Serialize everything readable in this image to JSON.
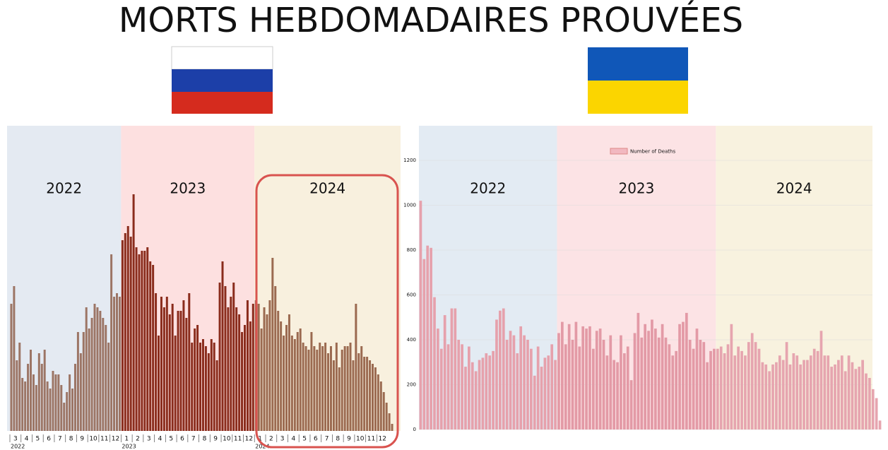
{
  "title": "MORTS HEBDOMADAIRES PROUVÉES",
  "chart_data": [
    {
      "type": "bar",
      "ylim": [
        0,
        400
      ],
      "periods": [
        {
          "label": "2022",
          "color": "#e4eaf2",
          "bar_color": "#9c7565",
          "categories": [
            "3",
            null,
            null,
            null,
            "4",
            null,
            null,
            null,
            "5",
            null,
            null,
            null,
            "6",
            null,
            null,
            null,
            "7",
            null,
            null,
            null,
            "8",
            null,
            null,
            null,
            "9",
            null,
            null,
            null,
            "10",
            null,
            null,
            null,
            "11",
            null,
            null,
            null,
            "12",
            null,
            null,
            null
          ],
          "values": [
            180,
            205,
            100,
            125,
            75,
            70,
            95,
            115,
            80,
            65,
            110,
            95,
            115,
            70,
            60,
            85,
            80,
            80,
            65,
            40,
            55,
            80,
            60,
            95,
            140,
            110,
            140,
            175,
            145,
            160,
            180,
            175,
            170,
            160,
            150,
            125,
            250,
            190,
            195,
            190
          ]
        },
        {
          "label": "2023",
          "color": "#fde0e0",
          "bar_color": "#8a2c1c",
          "categories": [
            "1",
            null,
            null,
            null,
            "2",
            null,
            null,
            null,
            "3",
            null,
            null,
            null,
            "4",
            null,
            null,
            null,
            "5",
            null,
            null,
            null,
            "6",
            null,
            null,
            null,
            "7",
            null,
            null,
            null,
            "8",
            null,
            null,
            null,
            "9",
            null,
            null,
            null,
            "10",
            null,
            null,
            null,
            "11",
            null,
            null,
            null,
            "12",
            null,
            null,
            null
          ],
          "values": [
            270,
            280,
            290,
            275,
            335,
            260,
            250,
            255,
            255,
            260,
            240,
            235,
            195,
            135,
            190,
            175,
            190,
            165,
            180,
            135,
            170,
            170,
            185,
            160,
            195,
            125,
            145,
            150,
            125,
            130,
            120,
            110,
            130,
            125,
            100,
            210,
            240,
            205,
            175,
            190,
            210,
            175,
            165,
            140,
            150,
            185,
            155,
            180
          ]
        },
        {
          "label": "2024",
          "color": "#f8f0de",
          "bar_color": "#9b6a50",
          "categories": [
            "1",
            null,
            null,
            null,
            "2",
            null,
            null,
            null,
            "3",
            null,
            null,
            null,
            "4",
            null,
            null,
            null,
            "5",
            null,
            null,
            null,
            "6",
            null,
            null,
            null,
            "7",
            null,
            null,
            null,
            "8",
            null,
            null,
            null,
            "9",
            null,
            null,
            null,
            "10",
            null,
            null,
            null,
            "11",
            null,
            null,
            null,
            "12",
            null,
            null,
            null,
            null,
            null
          ],
          "values": [
            185,
            180,
            145,
            175,
            165,
            185,
            245,
            205,
            170,
            155,
            135,
            150,
            165,
            135,
            130,
            140,
            145,
            125,
            120,
            115,
            140,
            120,
            115,
            125,
            120,
            125,
            110,
            120,
            100,
            125,
            90,
            115,
            120,
            120,
            125,
            100,
            180,
            110,
            120,
            105,
            105,
            100,
            95,
            90,
            80,
            70,
            55,
            40,
            25,
            10
          ]
        }
      ]
    },
    {
      "type": "bar",
      "ylim": [
        0,
        1200
      ],
      "yticks": [
        0,
        200,
        400,
        600,
        800,
        1000,
        1200
      ],
      "legend_label": "Number of Deaths",
      "legend_color": "#f2b8c0",
      "periods": [
        {
          "label": "2022",
          "color": "#e3ebf3",
          "bar_color": "#e6a1ac",
          "values": [
            1020,
            760,
            820,
            810,
            590,
            450,
            360,
            510,
            380,
            540,
            540,
            400,
            380,
            280,
            370,
            300,
            260,
            310,
            320,
            340,
            330,
            350,
            490,
            530,
            540,
            400,
            440,
            420,
            340,
            460,
            420,
            400,
            360,
            240,
            370,
            280,
            320,
            330,
            380,
            310
          ]
        },
        {
          "label": "2023",
          "color": "#fce3e5",
          "bar_color": "#e39aa6",
          "values": [
            430,
            480,
            380,
            470,
            400,
            480,
            370,
            460,
            450,
            460,
            360,
            440,
            450,
            400,
            330,
            420,
            310,
            300,
            420,
            340,
            370,
            220,
            430,
            520,
            410,
            470,
            440,
            490,
            450,
            410,
            470,
            410,
            380,
            330,
            350,
            470,
            480,
            520,
            400,
            360,
            450,
            400,
            390,
            300,
            350,
            360
          ]
        },
        {
          "label": "2024",
          "color": "#f8f2df",
          "bar_color": "#e6a5af",
          "values": [
            360,
            370,
            340,
            380,
            470,
            330,
            370,
            350,
            330,
            390,
            430,
            390,
            360,
            300,
            290,
            260,
            290,
            300,
            330,
            310,
            390,
            290,
            340,
            330,
            290,
            310,
            310,
            330,
            360,
            350,
            440,
            330,
            330,
            280,
            290,
            310,
            330,
            260,
            330,
            300,
            270,
            280,
            310,
            250,
            230,
            180,
            140,
            40
          ]
        }
      ]
    }
  ]
}
